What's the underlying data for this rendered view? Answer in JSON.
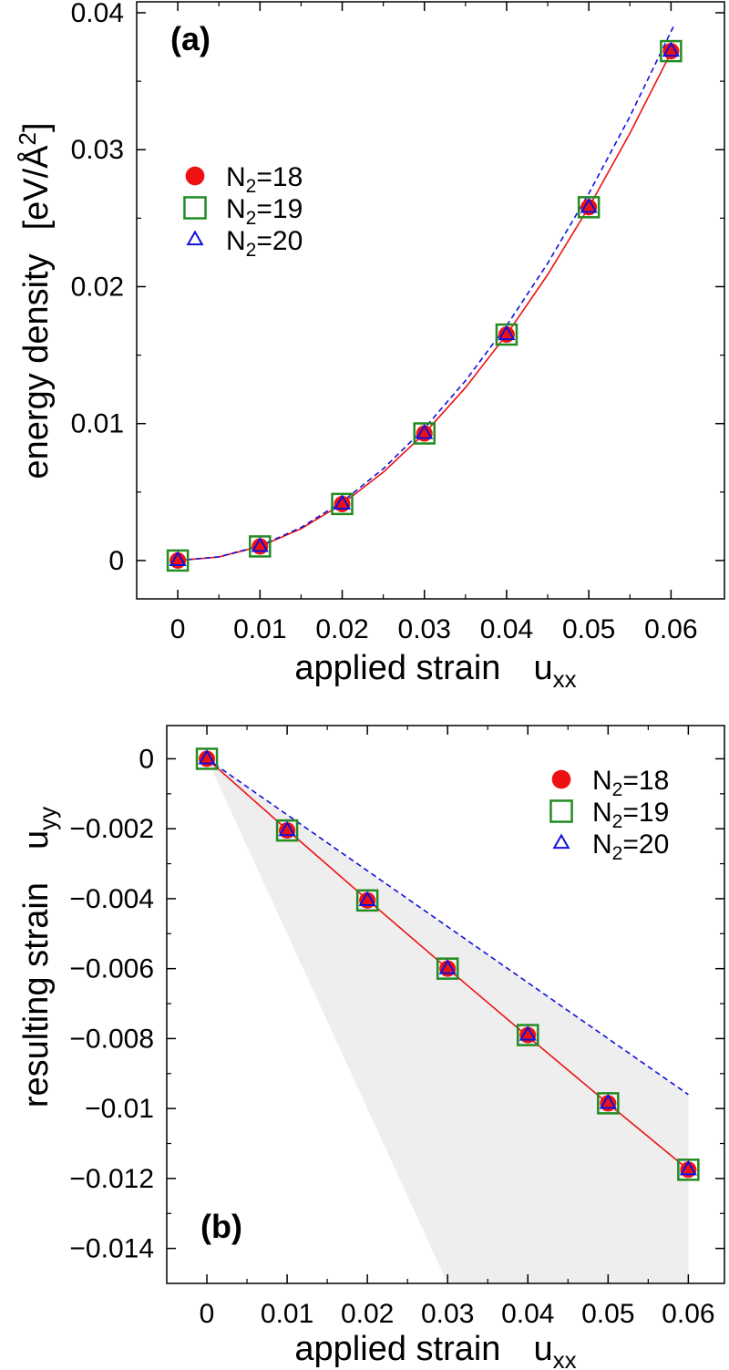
{
  "colors": {
    "n18": "#ee1111",
    "n19": "#228b22",
    "n20": "#1010dd",
    "shade": "#eeeeee"
  },
  "chart_data": [
    {
      "type": "scatter",
      "panel_label": "(a)",
      "xlabel": "applied strain",
      "xlabel_symbol": "u",
      "xlabel_sub": "xx",
      "ylabel": "energy density",
      "ylabel_unit": "[eV/Å",
      "ylabel_unit_sup": "2",
      "ylabel_unit_end": "]",
      "xlim": [
        -0.005,
        0.0665
      ],
      "ylim": [
        -0.0028,
        0.0408
      ],
      "xticks": [
        0,
        0.01,
        0.02,
        0.03,
        0.04,
        0.05,
        0.06
      ],
      "xtick_labels": [
        "0",
        "0.01",
        "0.02",
        "0.03",
        "0.04",
        "0.05",
        "0.06"
      ],
      "yticks": [
        0,
        0.01,
        0.02,
        0.03,
        0.04
      ],
      "ytick_labels": [
        "0",
        "0.01",
        "0.02",
        "0.03",
        "0.04"
      ],
      "legend": [
        {
          "prefix": "N",
          "sub": "2",
          "suffix": "=18",
          "marker": "circle"
        },
        {
          "prefix": "N",
          "sub": "2",
          "suffix": "=19",
          "marker": "square"
        },
        {
          "prefix": "N",
          "sub": "2",
          "suffix": "=20",
          "marker": "triangle"
        }
      ],
      "legend_position": "upper-left",
      "series": [
        {
          "name": "N2=18",
          "marker": "circle",
          "x": [
            0,
            0.01,
            0.02,
            0.03,
            0.04,
            0.05,
            0.06
          ],
          "y": [
            0,
            0.00103,
            0.00413,
            0.00928,
            0.0165,
            0.0258,
            0.0372
          ]
        },
        {
          "name": "N2=19",
          "marker": "square",
          "x": [
            0,
            0.01,
            0.02,
            0.03,
            0.04,
            0.05,
            0.06
          ],
          "y": [
            0,
            0.00103,
            0.00413,
            0.00928,
            0.0165,
            0.0258,
            0.0372
          ]
        },
        {
          "name": "N2=20",
          "marker": "triangle",
          "x": [
            0,
            0.01,
            0.02,
            0.03,
            0.04,
            0.05,
            0.06
          ],
          "y": [
            0,
            0.00103,
            0.00413,
            0.00928,
            0.0165,
            0.0258,
            0.0372
          ]
        }
      ],
      "curves": [
        {
          "style": "solid",
          "color": "red",
          "x": [
            0,
            0.005,
            0.01,
            0.015,
            0.02,
            0.025,
            0.03,
            0.035,
            0.04,
            0.045,
            0.05,
            0.055,
            0.06
          ],
          "y": [
            0,
            0.00026,
            0.00103,
            0.00232,
            0.00413,
            0.00645,
            0.00928,
            0.01263,
            0.0165,
            0.02088,
            0.0258,
            0.0312,
            0.0371
          ]
        },
        {
          "style": "dashed",
          "color": "blue",
          "x": [
            0,
            0.005,
            0.01,
            0.015,
            0.02,
            0.025,
            0.03,
            0.035,
            0.04,
            0.045,
            0.05,
            0.055,
            0.0603
          ],
          "y": [
            0,
            0.00027,
            0.00107,
            0.00241,
            0.00429,
            0.0067,
            0.00965,
            0.01313,
            0.01715,
            0.02171,
            0.0268,
            0.03243,
            0.039
          ]
        }
      ]
    },
    {
      "type": "scatter",
      "panel_label": "(b)",
      "xlabel": "applied strain",
      "xlabel_symbol": "u",
      "xlabel_sub": "xx",
      "ylabel": "resulting strain",
      "ylabel_symbol": "u",
      "ylabel_sub": "yy",
      "xlim": [
        -0.005,
        0.0645
      ],
      "ylim": [
        -0.015,
        0.00095
      ],
      "xticks": [
        0,
        0.01,
        0.02,
        0.03,
        0.04,
        0.05,
        0.06
      ],
      "xtick_labels": [
        "0",
        "0.01",
        "0.02",
        "0.03",
        "0.04",
        "0.05",
        "0.06"
      ],
      "yticks": [
        0,
        -0.002,
        -0.004,
        -0.006,
        -0.008,
        -0.01,
        -0.012,
        -0.014
      ],
      "ytick_labels": [
        "0",
        "−0.002",
        "−0.004",
        "−0.006",
        "−0.008",
        "−0.01",
        "−0.012",
        "−0.014"
      ],
      "legend": [
        {
          "prefix": "N",
          "sub": "2",
          "suffix": "=18",
          "marker": "circle"
        },
        {
          "prefix": "N",
          "sub": "2",
          "suffix": "=19",
          "marker": "square"
        },
        {
          "prefix": "N",
          "sub": "2",
          "suffix": "=20",
          "marker": "triangle"
        }
      ],
      "legend_position": "upper-right",
      "shaded_region": {
        "x": [
          0,
          0.06,
          0.06,
          0.03
        ],
        "y": [
          0,
          -0.0096,
          -0.015,
          -0.015
        ]
      },
      "series": [
        {
          "name": "N2=18",
          "marker": "circle",
          "x": [
            0,
            0.01,
            0.02,
            0.03,
            0.04,
            0.05,
            0.06
          ],
          "y": [
            0,
            -0.00205,
            -0.00405,
            -0.006,
            -0.0079,
            -0.00985,
            -0.01175
          ]
        },
        {
          "name": "N2=19",
          "marker": "square",
          "x": [
            0,
            0.01,
            0.02,
            0.03,
            0.04,
            0.05,
            0.06
          ],
          "y": [
            0,
            -0.00205,
            -0.00405,
            -0.006,
            -0.0079,
            -0.00985,
            -0.01175
          ]
        },
        {
          "name": "N2=20",
          "marker": "triangle",
          "x": [
            0,
            0.01,
            0.02,
            0.03,
            0.04,
            0.05,
            0.06
          ],
          "y": [
            0,
            -0.00205,
            -0.00405,
            -0.006,
            -0.0079,
            -0.00985,
            -0.01175
          ]
        }
      ],
      "curves": [
        {
          "style": "solid",
          "color": "red",
          "x": [
            0,
            0.01,
            0.02,
            0.03,
            0.04,
            0.05,
            0.06
          ],
          "y": [
            0,
            -0.00203,
            -0.00403,
            -0.006,
            -0.00794,
            -0.00986,
            -0.01175
          ]
        },
        {
          "style": "dashed",
          "color": "blue",
          "x": [
            0,
            0.06
          ],
          "y": [
            0,
            -0.0096
          ]
        }
      ]
    }
  ]
}
